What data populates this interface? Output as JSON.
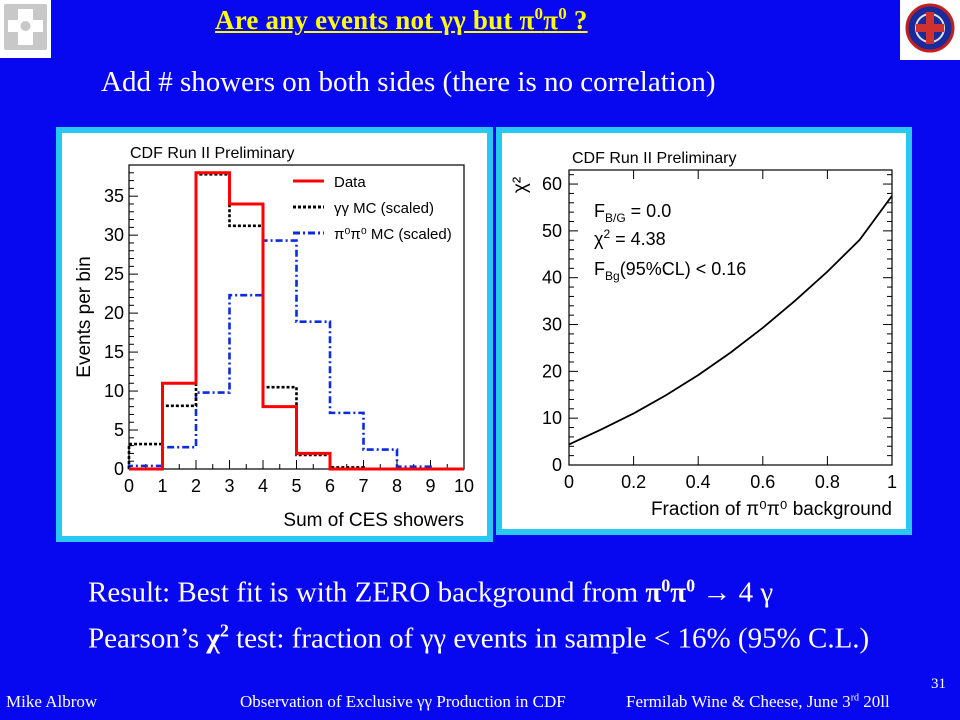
{
  "slide": {
    "title_prefix": "Are any events not ",
    "title_gg": "γγ",
    "title_mid": " but ",
    "title_pi": "π",
    "title_sup1": "0",
    "title_pi2": "π",
    "title_sup2": "0",
    "title_end": " ?",
    "subtitle": "Add # showers on both sides (there is no correlation)",
    "result_line1_prefix": "Result: Best fit is with ZERO background from ",
    "result_line1_bold": "π",
    "result_line1_sup1": "0",
    "result_line1_bold2": "π",
    "result_line1_sup2": "0",
    "result_line1_suffix": " → 4 γ",
    "result_line2_prefix": "Pearson’s ",
    "result_line2_bold": "χ",
    "result_line2_sup": "2",
    "result_line2_suffix": " test: fraction of γγ events in sample < 16% (95% C.L.)",
    "footer_author": "Mike Albrow",
    "footer_talk": "Observation of Exclusive γγ Production in CDF",
    "footer_venue": "Fermilab Wine & Cheese, June 3",
    "footer_venue_sup": "rd",
    "footer_venue_end": " 20ll",
    "page_number": "31"
  },
  "colors": {
    "background": "#0808f0",
    "title": "#ffff00",
    "panel_border": "#29c8f2",
    "data": "#ff0000",
    "gg_mc": "#000000",
    "pipi_mc": "#0a2be0"
  },
  "chart_data": [
    {
      "type": "line",
      "title": "CDF Run II Preliminary",
      "xlabel": "Sum of CES showers",
      "ylabel": "Events per bin",
      "xlim": [
        0,
        10
      ],
      "ylim": [
        0,
        39
      ],
      "xticks": [
        "0",
        "1",
        "2",
        "3",
        "4",
        "5",
        "6",
        "7",
        "8",
        "9",
        "10"
      ],
      "yticks": [
        "0",
        "5",
        "10",
        "15",
        "20",
        "25",
        "30",
        "35"
      ],
      "bin_edges": [
        0,
        1,
        2,
        3,
        4,
        5,
        6,
        7,
        8,
        9,
        10
      ],
      "legend_position": "top-right",
      "series": [
        {
          "name": "Data",
          "style": "solid",
          "color": "#ff0000",
          "values": [
            0,
            11,
            38,
            34,
            8,
            2,
            0,
            0,
            0,
            0
          ]
        },
        {
          "name": "γγ MC (scaled)",
          "style": "dotted",
          "color": "#000000",
          "values": [
            3.2,
            8.1,
            37.8,
            31.2,
            10.5,
            1.8,
            0.2,
            0,
            0,
            0
          ]
        },
        {
          "name": "π⁰π⁰ MC (scaled)",
          "style": "dashdot",
          "color": "#0a2be0",
          "values": [
            0.4,
            2.8,
            9.8,
            22.3,
            29.3,
            18.9,
            7.2,
            2.5,
            0.3,
            0
          ]
        }
      ]
    },
    {
      "type": "line",
      "title": "CDF Run II Preliminary",
      "xlabel": "Fraction of π⁰π⁰ background",
      "ylabel": "χ²",
      "xlim": [
        0,
        1
      ],
      "ylim": [
        0,
        63
      ],
      "xticks": [
        "0",
        "0.2",
        "0.4",
        "0.6",
        "0.8",
        "1"
      ],
      "yticks": [
        "0",
        "10",
        "20",
        "30",
        "40",
        "50",
        "60"
      ],
      "annotations": {
        "line1_main": "F",
        "line1_sub": "B/G",
        "line1_rest": " = 0.0",
        "line2": "χ",
        "line2_sup": "2",
        "line2_rest": " =  4.38",
        "line3_main": "F",
        "line3_sub": "Bg",
        "line3_rest": "(95%CL) < 0.16"
      },
      "series": [
        {
          "color": "#000000",
          "x": [
            0,
            0.1,
            0.2,
            0.3,
            0.4,
            0.5,
            0.6,
            0.7,
            0.8,
            0.9,
            1.0
          ],
          "y": [
            4.4,
            7.6,
            11.0,
            14.9,
            19.2,
            24.0,
            29.3,
            35.1,
            41.3,
            48.1,
            57.5
          ]
        }
      ]
    }
  ]
}
